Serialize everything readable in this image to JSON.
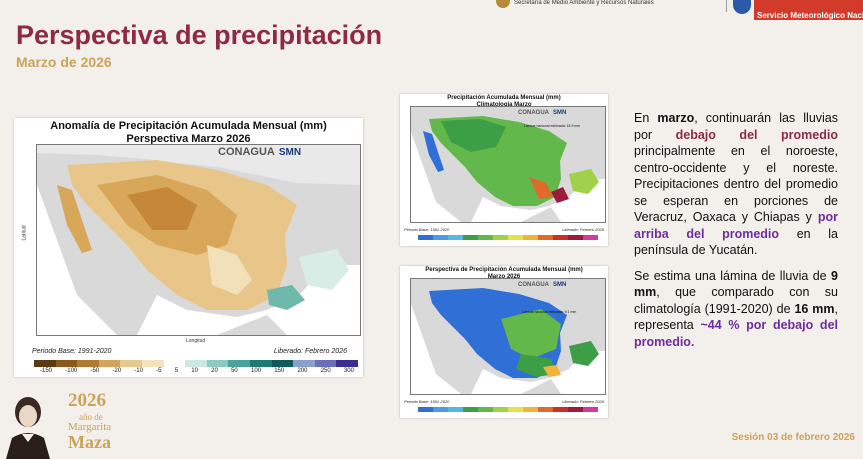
{
  "header": {
    "secretaria": "Secretaría de Medio Ambiente y Recursos Naturales",
    "smn": "Servicio Meteorológico Nacio"
  },
  "page": {
    "title": "Perspectiva de precipitación",
    "subtitle": "Marzo de 2026"
  },
  "main_map": {
    "title_line1": "Anomalía de Precipitación Acumulada Mensual (mm)",
    "title_line2": "Perspectiva Marzo 2026",
    "conagua": "CONAGUA",
    "smn": "SMN",
    "ylabel": "Latitud",
    "xlabel": "Longitud",
    "period": "Periodo Base: 1991-2020",
    "released": "Liberado: Febrero 2026",
    "colorbar_ticks": [
      "-150",
      "-100",
      "-50",
      "-20",
      "-10",
      "-5",
      "5",
      "10",
      "20",
      "50",
      "100",
      "150",
      "200",
      "250",
      "300"
    ],
    "colorbar_colors": [
      "#5a3a10",
      "#8a5a1a",
      "#b07a30",
      "#d2a35a",
      "#e6c98f",
      "#f3e2bd",
      "#ffffff",
      "#cde8e2",
      "#8ccbc0",
      "#4aa39a",
      "#1f7a73",
      "#0f5a5a",
      "#8a9fcf",
      "#6a6fb8",
      "#3a2f8f"
    ]
  },
  "clim_map": {
    "title_line1": "Precipitación Acumulada Mensual (mm)",
    "title_line2": "Climatología Marzo",
    "conagua": "CONAGUA",
    "smn": "SMN",
    "lamina": "Lámina nacional estimada: 15.9 mm",
    "period": "Periodo Base: 1991-2020",
    "released": "Liberado: Febrero 2026",
    "colorbar_colors": [
      "#2f6fd6",
      "#4d9be0",
      "#55b8e0",
      "#3c9f45",
      "#62b84a",
      "#9fd14a",
      "#e2e24a",
      "#f0b43c",
      "#e06a2a",
      "#c8302a",
      "#9a1c3a",
      "#d23aa0"
    ]
  },
  "persp_map": {
    "title_line1": "Perspectiva de Precipitación Acumulada Mensual (mm)",
    "title_line2": "Marzo 2026",
    "conagua": "CONAGUA",
    "smn": "SMN",
    "lamina": "Lámina nacional estimada: 9.1 mm",
    "period": "Periodo Base: 1991-2020",
    "released": "Liberado: Febrero 2026",
    "colorbar_colors": [
      "#2f6fd6",
      "#4d9be0",
      "#55b8e0",
      "#3c9f45",
      "#62b84a",
      "#9fd14a",
      "#e2e24a",
      "#f0b43c",
      "#e06a2a",
      "#c8302a",
      "#9a1c3a",
      "#d23aa0"
    ]
  },
  "text": {
    "p1_a": "En ",
    "p1_marzo": "marzo",
    "p1_b": ", continuarán las lluvias por ",
    "p1_below": "debajo del promedio",
    "p1_c": " principalmente en el noroeste, centro-occidente y el noreste. Precipitaciones dentro del promedio se esperan en porciones de Veracruz, Oaxaca y Chiapas y ",
    "p1_above": "por arriba del promedio",
    "p1_d": " en la península de Yucatán.",
    "p2_a": "Se estima una lámina de lluvia de ",
    "p2_9mm": "9 mm",
    "p2_b": ", que comparado con su climatología (1991-2020) de ",
    "p2_16mm": "16 mm",
    "p2_c": ", representa ",
    "p2_pct": "~44 % por debajo del promedio."
  },
  "anniversary": {
    "year": "2026",
    "line2": "año de",
    "line3": "Margarita",
    "line4": "Maza"
  },
  "footer": {
    "session": "Sesión 03 de febrero 2026"
  }
}
